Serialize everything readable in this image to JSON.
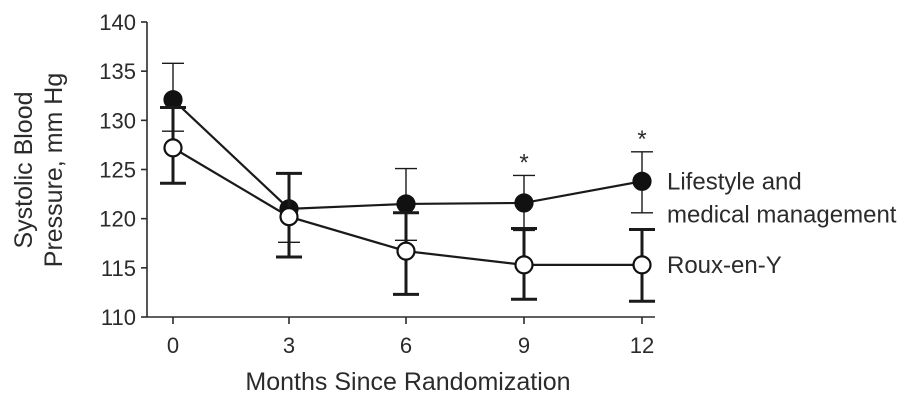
{
  "chart_data": {
    "type": "line",
    "xlabel": "Months Since Randomization",
    "ylabel_lines": [
      "Systolic Blood",
      "Pressure, mm Hg"
    ],
    "x": [
      0,
      3,
      6,
      9,
      12
    ],
    "x_ticks": [
      "0",
      "3",
      "6",
      "9",
      "12"
    ],
    "ylim": [
      110,
      140
    ],
    "y_ticks": [
      110,
      115,
      120,
      125,
      130,
      135,
      140
    ],
    "grid": false,
    "series": [
      {
        "name": "Lifestyle and medical management",
        "legend_lines": [
          "Lifestyle and",
          "medical management"
        ],
        "marker": "filled-circle",
        "error_style": "thin",
        "values": [
          132.1,
          121.0,
          121.5,
          121.6,
          123.8
        ],
        "err_low": [
          128.9,
          117.6,
          117.8,
          118.8,
          120.6
        ],
        "err_high": [
          135.8,
          124.6,
          125.1,
          124.4,
          126.8
        ]
      },
      {
        "name": "Roux-en-Y",
        "legend_lines": [
          "Roux-en-Y"
        ],
        "marker": "open-circle",
        "error_style": "thick",
        "values": [
          127.2,
          120.2,
          116.7,
          115.3,
          115.3
        ],
        "err_low": [
          123.6,
          116.1,
          112.3,
          111.8,
          111.6
        ],
        "err_high": [
          131.3,
          124.6,
          120.6,
          119.0,
          118.9
        ]
      }
    ],
    "significance_marker": "*",
    "significance_at_x": [
      9,
      12
    ]
  }
}
